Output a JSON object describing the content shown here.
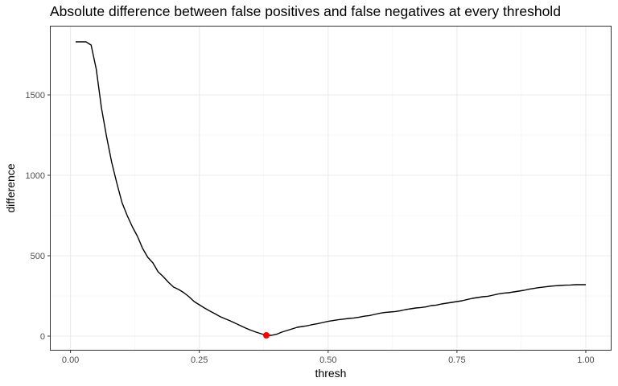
{
  "chart_data": {
    "type": "line",
    "title": "Absolute difference between false positives and false negatives at every threshold",
    "xlabel": "thresh",
    "ylabel": "difference",
    "xlim": [
      -0.04,
      1.05
    ],
    "ylim": [
      -90,
      1930
    ],
    "x_ticks": [
      0.0,
      0.25,
      0.5,
      0.75,
      1.0
    ],
    "x_tick_labels": [
      "0.00",
      "0.25",
      "0.50",
      "0.75",
      "1.00"
    ],
    "y_ticks": [
      0,
      500,
      1000,
      1500
    ],
    "y_tick_labels": [
      "0",
      "500",
      "1000",
      "1500"
    ],
    "grid": true,
    "line_color": "#000000",
    "highlight_color": "#ff0000",
    "series": [
      {
        "x": [
          0.01,
          0.02,
          0.03,
          0.04,
          0.05,
          0.06,
          0.07,
          0.08,
          0.09,
          0.1,
          0.11,
          0.12,
          0.13,
          0.14,
          0.15,
          0.16,
          0.17,
          0.18,
          0.19,
          0.2,
          0.21,
          0.22,
          0.23,
          0.24,
          0.25,
          0.26,
          0.27,
          0.28,
          0.29,
          0.3,
          0.31,
          0.32,
          0.33,
          0.34,
          0.35,
          0.36,
          0.37,
          0.38,
          0.39,
          0.4,
          0.41,
          0.42,
          0.43,
          0.44,
          0.45,
          0.46,
          0.47,
          0.48,
          0.49,
          0.5,
          0.51,
          0.52,
          0.53,
          0.54,
          0.55,
          0.56,
          0.57,
          0.58,
          0.59,
          0.6,
          0.61,
          0.62,
          0.63,
          0.64,
          0.65,
          0.66,
          0.67,
          0.68,
          0.69,
          0.7,
          0.71,
          0.72,
          0.73,
          0.74,
          0.75,
          0.76,
          0.77,
          0.78,
          0.79,
          0.8,
          0.81,
          0.82,
          0.83,
          0.84,
          0.85,
          0.86,
          0.87,
          0.88,
          0.89,
          0.9,
          0.91,
          0.92,
          0.93,
          0.94,
          0.95,
          0.96,
          0.97,
          0.98,
          0.99,
          1.0
        ],
        "values": [
          1830,
          1830,
          1830,
          1810,
          1660,
          1420,
          1240,
          1080,
          950,
          830,
          750,
          680,
          620,
          545,
          490,
          455,
          400,
          370,
          335,
          305,
          290,
          270,
          245,
          215,
          195,
          175,
          157,
          140,
          122,
          108,
          95,
          80,
          65,
          50,
          37,
          25,
          15,
          5,
          5,
          12,
          25,
          35,
          45,
          55,
          60,
          65,
          72,
          78,
          85,
          92,
          97,
          102,
          106,
          110,
          113,
          118,
          124,
          128,
          135,
          142,
          147,
          150,
          153,
          158,
          165,
          170,
          175,
          178,
          182,
          190,
          193,
          200,
          205,
          210,
          215,
          220,
          228,
          235,
          240,
          245,
          248,
          255,
          262,
          267,
          270,
          275,
          280,
          285,
          292,
          297,
          302,
          306,
          310,
          313,
          315,
          317,
          318,
          320,
          320,
          320
        ]
      }
    ],
    "highlight_point": {
      "x": 0.38,
      "y": 5
    }
  }
}
